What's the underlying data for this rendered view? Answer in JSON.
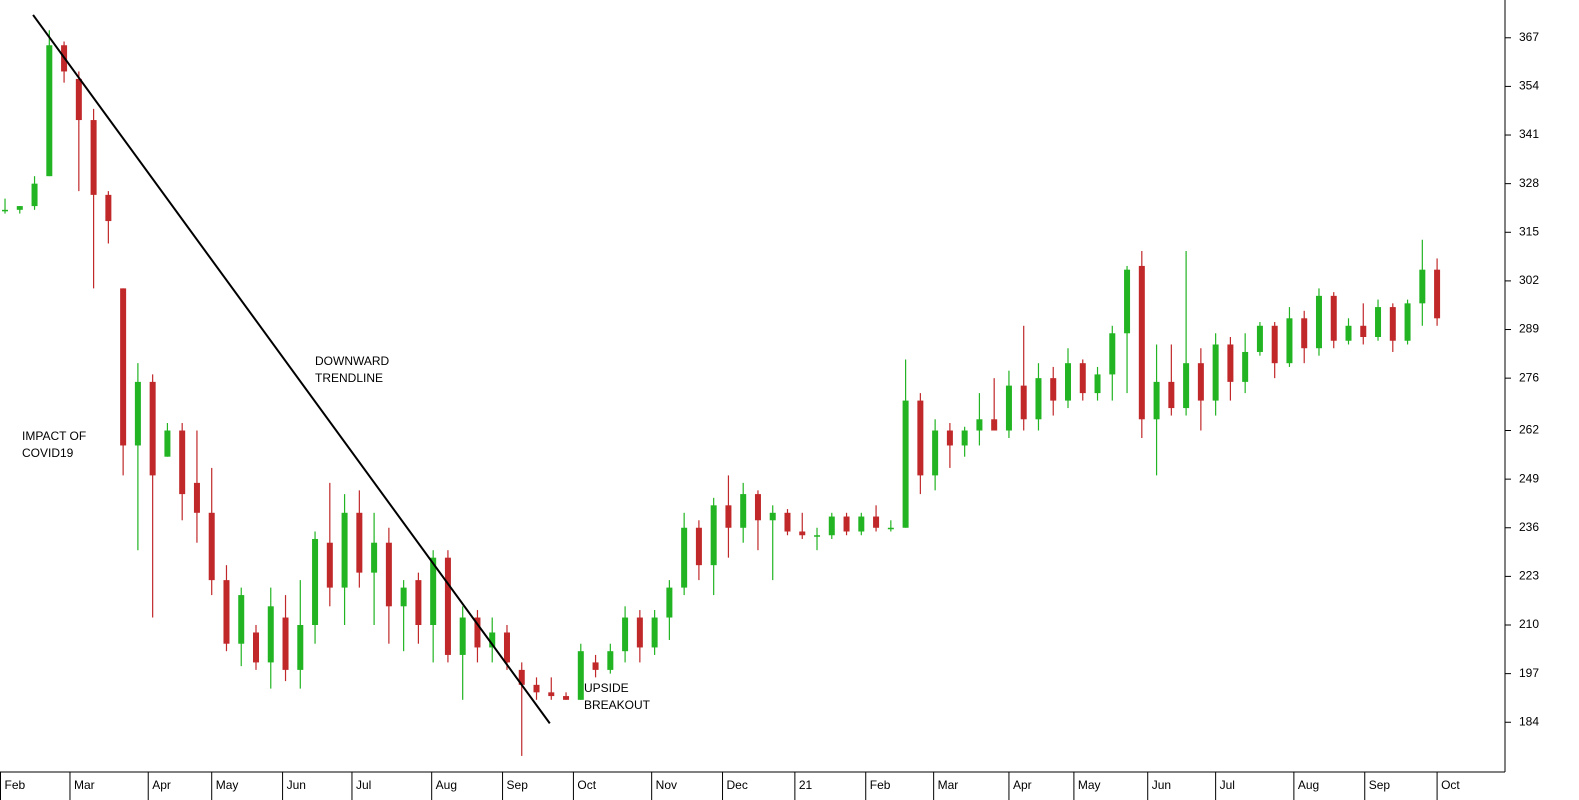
{
  "chart_data": {
    "type": "candlestick",
    "up_color": "#22b422",
    "down_color": "#c0282a",
    "annotation_color": "#2828e6",
    "ylim": [
      170.7,
      377.1
    ],
    "yticks": [
      184,
      197,
      210,
      223,
      236,
      249,
      262,
      276,
      289,
      302,
      315,
      328,
      341,
      354,
      367
    ],
    "xlim": [
      -0.34,
      101.6
    ],
    "xticks": [
      {
        "value": -0.34,
        "label": "Feb"
      },
      {
        "value": 4.4,
        "label": "Mar"
      },
      {
        "value": 9.7,
        "label": "Apr"
      },
      {
        "value": 14.0,
        "label": "May"
      },
      {
        "value": 18.8,
        "label": "Jun"
      },
      {
        "value": 23.5,
        "label": "Jul"
      },
      {
        "value": 28.9,
        "label": "Aug"
      },
      {
        "value": 33.7,
        "label": "Sep"
      },
      {
        "value": 38.5,
        "label": "Oct"
      },
      {
        "value": 43.8,
        "label": "Nov"
      },
      {
        "value": 48.6,
        "label": "Dec"
      },
      {
        "value": 53.5,
        "label": "21"
      },
      {
        "value": 58.3,
        "label": "Feb"
      },
      {
        "value": 62.9,
        "label": "Mar"
      },
      {
        "value": 68.0,
        "label": "Apr"
      },
      {
        "value": 72.4,
        "label": "May"
      },
      {
        "value": 77.4,
        "label": "Jun"
      },
      {
        "value": 82.0,
        "label": "Jul"
      },
      {
        "value": 87.3,
        "label": "Aug"
      },
      {
        "value": 92.1,
        "label": "Sep"
      },
      {
        "value": 97.0,
        "label": "Oct"
      }
    ],
    "open": [
      321,
      321,
      322,
      330,
      365,
      356,
      345,
      325,
      300,
      258,
      275,
      255,
      262,
      248,
      240,
      222,
      205,
      208,
      200,
      212,
      198,
      210,
      232,
      220,
      240,
      224,
      232,
      215,
      222,
      210,
      228,
      202,
      212,
      204,
      208,
      198,
      194,
      192,
      191,
      190,
      200,
      198,
      203,
      212,
      204,
      212,
      220,
      236,
      226,
      242,
      236,
      245,
      238,
      240,
      235,
      234,
      234,
      239,
      235,
      239,
      236,
      236,
      270,
      250,
      262,
      258,
      262,
      265,
      262,
      274,
      265,
      276,
      270,
      280,
      272,
      277,
      288,
      306,
      265,
      275,
      268,
      280,
      270,
      285,
      275,
      283,
      290,
      280,
      292,
      284,
      298,
      286,
      290,
      287,
      295,
      286,
      296,
      305
    ],
    "high": [
      324,
      322,
      330,
      369,
      366,
      358,
      348,
      326,
      300,
      280,
      277,
      264,
      264,
      262,
      252,
      226,
      220,
      210,
      220,
      218,
      222,
      235,
      248,
      245,
      246,
      240,
      236,
      222,
      224,
      230,
      230,
      215,
      214,
      212,
      210,
      200,
      196,
      196,
      192,
      205,
      202,
      205,
      215,
      214,
      214,
      222,
      240,
      238,
      244,
      250,
      248,
      246,
      242,
      241,
      240,
      236,
      240,
      240,
      240,
      242,
      238,
      281,
      272,
      265,
      264,
      263,
      272,
      276,
      278,
      290,
      280,
      279,
      284,
      281,
      279,
      290,
      306,
      310,
      285,
      285,
      310,
      284,
      288,
      287,
      288,
      291,
      291,
      295,
      294,
      300,
      299,
      292,
      296,
      297,
      296,
      297,
      313,
      308
    ],
    "low": [
      320,
      320,
      321,
      330,
      355,
      326,
      300,
      312,
      250,
      230,
      212,
      255,
      238,
      232,
      218,
      203,
      199,
      198,
      193,
      195,
      193,
      205,
      215,
      210,
      220,
      210,
      205,
      203,
      205,
      200,
      200,
      190,
      200,
      200,
      198,
      175,
      190,
      190,
      190,
      190,
      196,
      197,
      200,
      200,
      202,
      206,
      218,
      222,
      218,
      228,
      232,
      230,
      222,
      234,
      233,
      230,
      233,
      234,
      234,
      235,
      235,
      236,
      245,
      246,
      252,
      255,
      258,
      262,
      260,
      262,
      262,
      266,
      268,
      270,
      270,
      270,
      272,
      260,
      250,
      266,
      266,
      262,
      266,
      270,
      272,
      282,
      276,
      279,
      280,
      282,
      284,
      285,
      285,
      286,
      283,
      285,
      290,
      290
    ],
    "close": [
      321,
      322,
      328,
      365,
      358,
      345,
      325,
      318,
      258,
      275,
      250,
      262,
      245,
      240,
      222,
      205,
      218,
      200,
      215,
      198,
      210,
      233,
      220,
      240,
      224,
      232,
      215,
      220,
      210,
      228,
      202,
      212,
      204,
      208,
      200,
      194,
      192,
      191,
      190,
      203,
      198,
      203,
      212,
      204,
      212,
      220,
      236,
      226,
      242,
      236,
      245,
      238,
      240,
      235,
      234,
      234,
      239,
      235,
      239,
      236,
      236,
      270,
      250,
      262,
      258,
      262,
      265,
      262,
      274,
      265,
      276,
      270,
      280,
      272,
      277,
      288,
      305,
      265,
      275,
      268,
      280,
      270,
      285,
      275,
      283,
      290,
      280,
      292,
      284,
      298,
      286,
      290,
      287,
      295,
      286,
      296,
      305,
      292
    ],
    "trendline": {
      "x": [
        1.9,
        36.9
      ],
      "y": [
        373.1,
        183.7
      ]
    },
    "annotations": [
      {
        "lines": [
          "IMPACT OF",
          "COVID19"
        ]
      },
      {
        "lines": [
          "DOWNWARD",
          "TRENDLINE"
        ]
      },
      {
        "lines": [
          "UPSIDE",
          "BREAKOUT"
        ]
      }
    ]
  }
}
